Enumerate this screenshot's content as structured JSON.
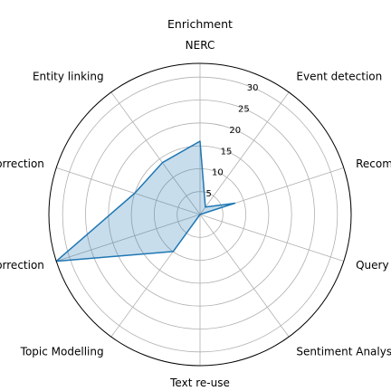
{
  "chart_data": {
    "type": "radar",
    "title": "Enrichment",
    "axes": [
      "NERC",
      "Event detection",
      "Recommendations (of similar and",
      "Query",
      "Sentiment Analysis",
      "Text re-use",
      "Topic Modelling",
      "Crowdsourced post-OCR correction",
      "Automatic post-OCR correction",
      "Entity linking"
    ],
    "series": [
      {
        "values": [
          16,
          2,
          8,
          0,
          0,
          0,
          10,
          33,
          15,
          14
        ]
      }
    ],
    "rlim": [
      0,
      33
    ],
    "rticks": [
      5,
      10,
      15,
      20,
      25,
      30
    ],
    "grid": true,
    "legend": "none",
    "colors": {
      "line": "#1f77b4",
      "fill": "#1f77b4",
      "fill_opacity": "0.25",
      "grid": "#b0b0b0",
      "frame": "#000000"
    }
  }
}
